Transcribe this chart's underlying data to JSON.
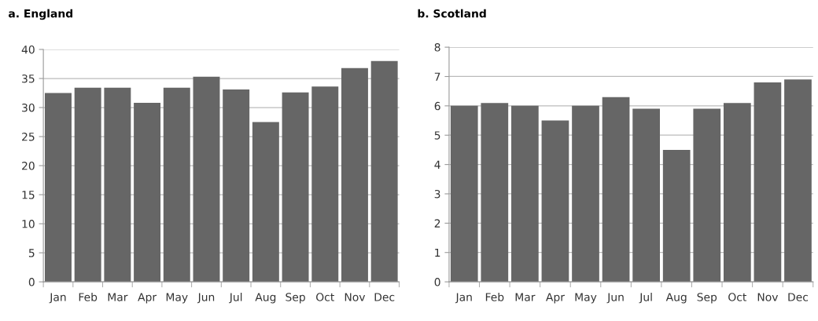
{
  "chart_data": [
    {
      "type": "bar",
      "title": "a. England",
      "categories": [
        "Jan",
        "Feb",
        "Mar",
        "Apr",
        "May",
        "Jun",
        "Jul",
        "Aug",
        "Sep",
        "Oct",
        "Nov",
        "Dec"
      ],
      "values": [
        32.5,
        33.4,
        33.4,
        30.8,
        33.4,
        35.3,
        33.1,
        27.5,
        32.6,
        33.6,
        36.8,
        38.0
      ],
      "color": "#666666",
      "ylim": [
        0,
        40
      ],
      "yticks": [
        0,
        5,
        10,
        15,
        20,
        25,
        30,
        35,
        40
      ],
      "grid": "y"
    },
    {
      "type": "bar",
      "title": "b. Scotland",
      "categories": [
        "Jan",
        "Feb",
        "Mar",
        "Apr",
        "May",
        "Jun",
        "Jul",
        "Aug",
        "Sep",
        "Oct",
        "Nov",
        "Dec"
      ],
      "values": [
        6.0,
        6.1,
        6.0,
        5.5,
        6.0,
        6.3,
        5.9,
        4.5,
        5.9,
        6.1,
        6.8,
        6.9
      ],
      "color": "#666666",
      "ylim": [
        0,
        8
      ],
      "yticks": [
        0,
        1,
        2,
        3,
        4,
        5,
        6,
        7,
        8
      ],
      "grid": "y"
    }
  ]
}
